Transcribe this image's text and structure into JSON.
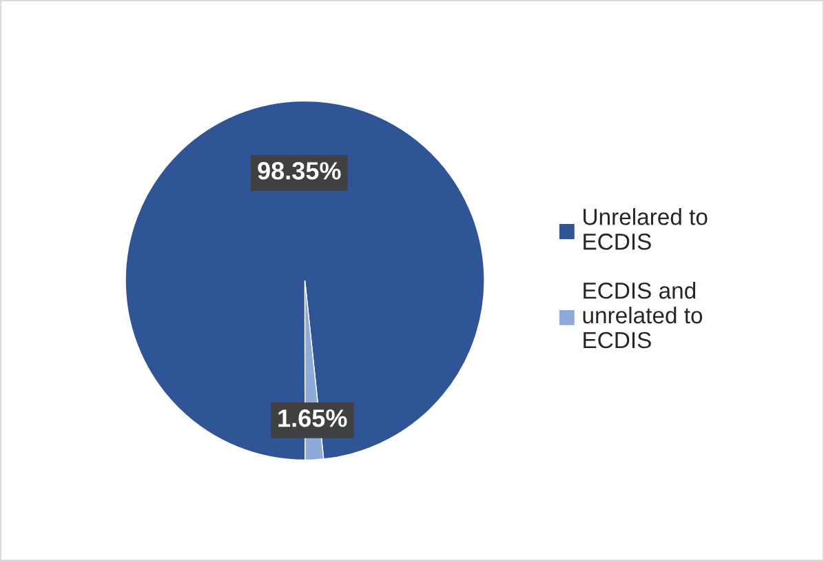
{
  "chart_data": {
    "type": "pie",
    "categories": [
      "Unrelared to\nECDIS",
      "ECDIS and\nunrelated to\nECDIS"
    ],
    "values": [
      98.35,
      1.65
    ],
    "colors": [
      "#2f5597",
      "#8eaadb"
    ],
    "value_labels": [
      "98.35%",
      "1.65%"
    ],
    "legend": "right"
  }
}
